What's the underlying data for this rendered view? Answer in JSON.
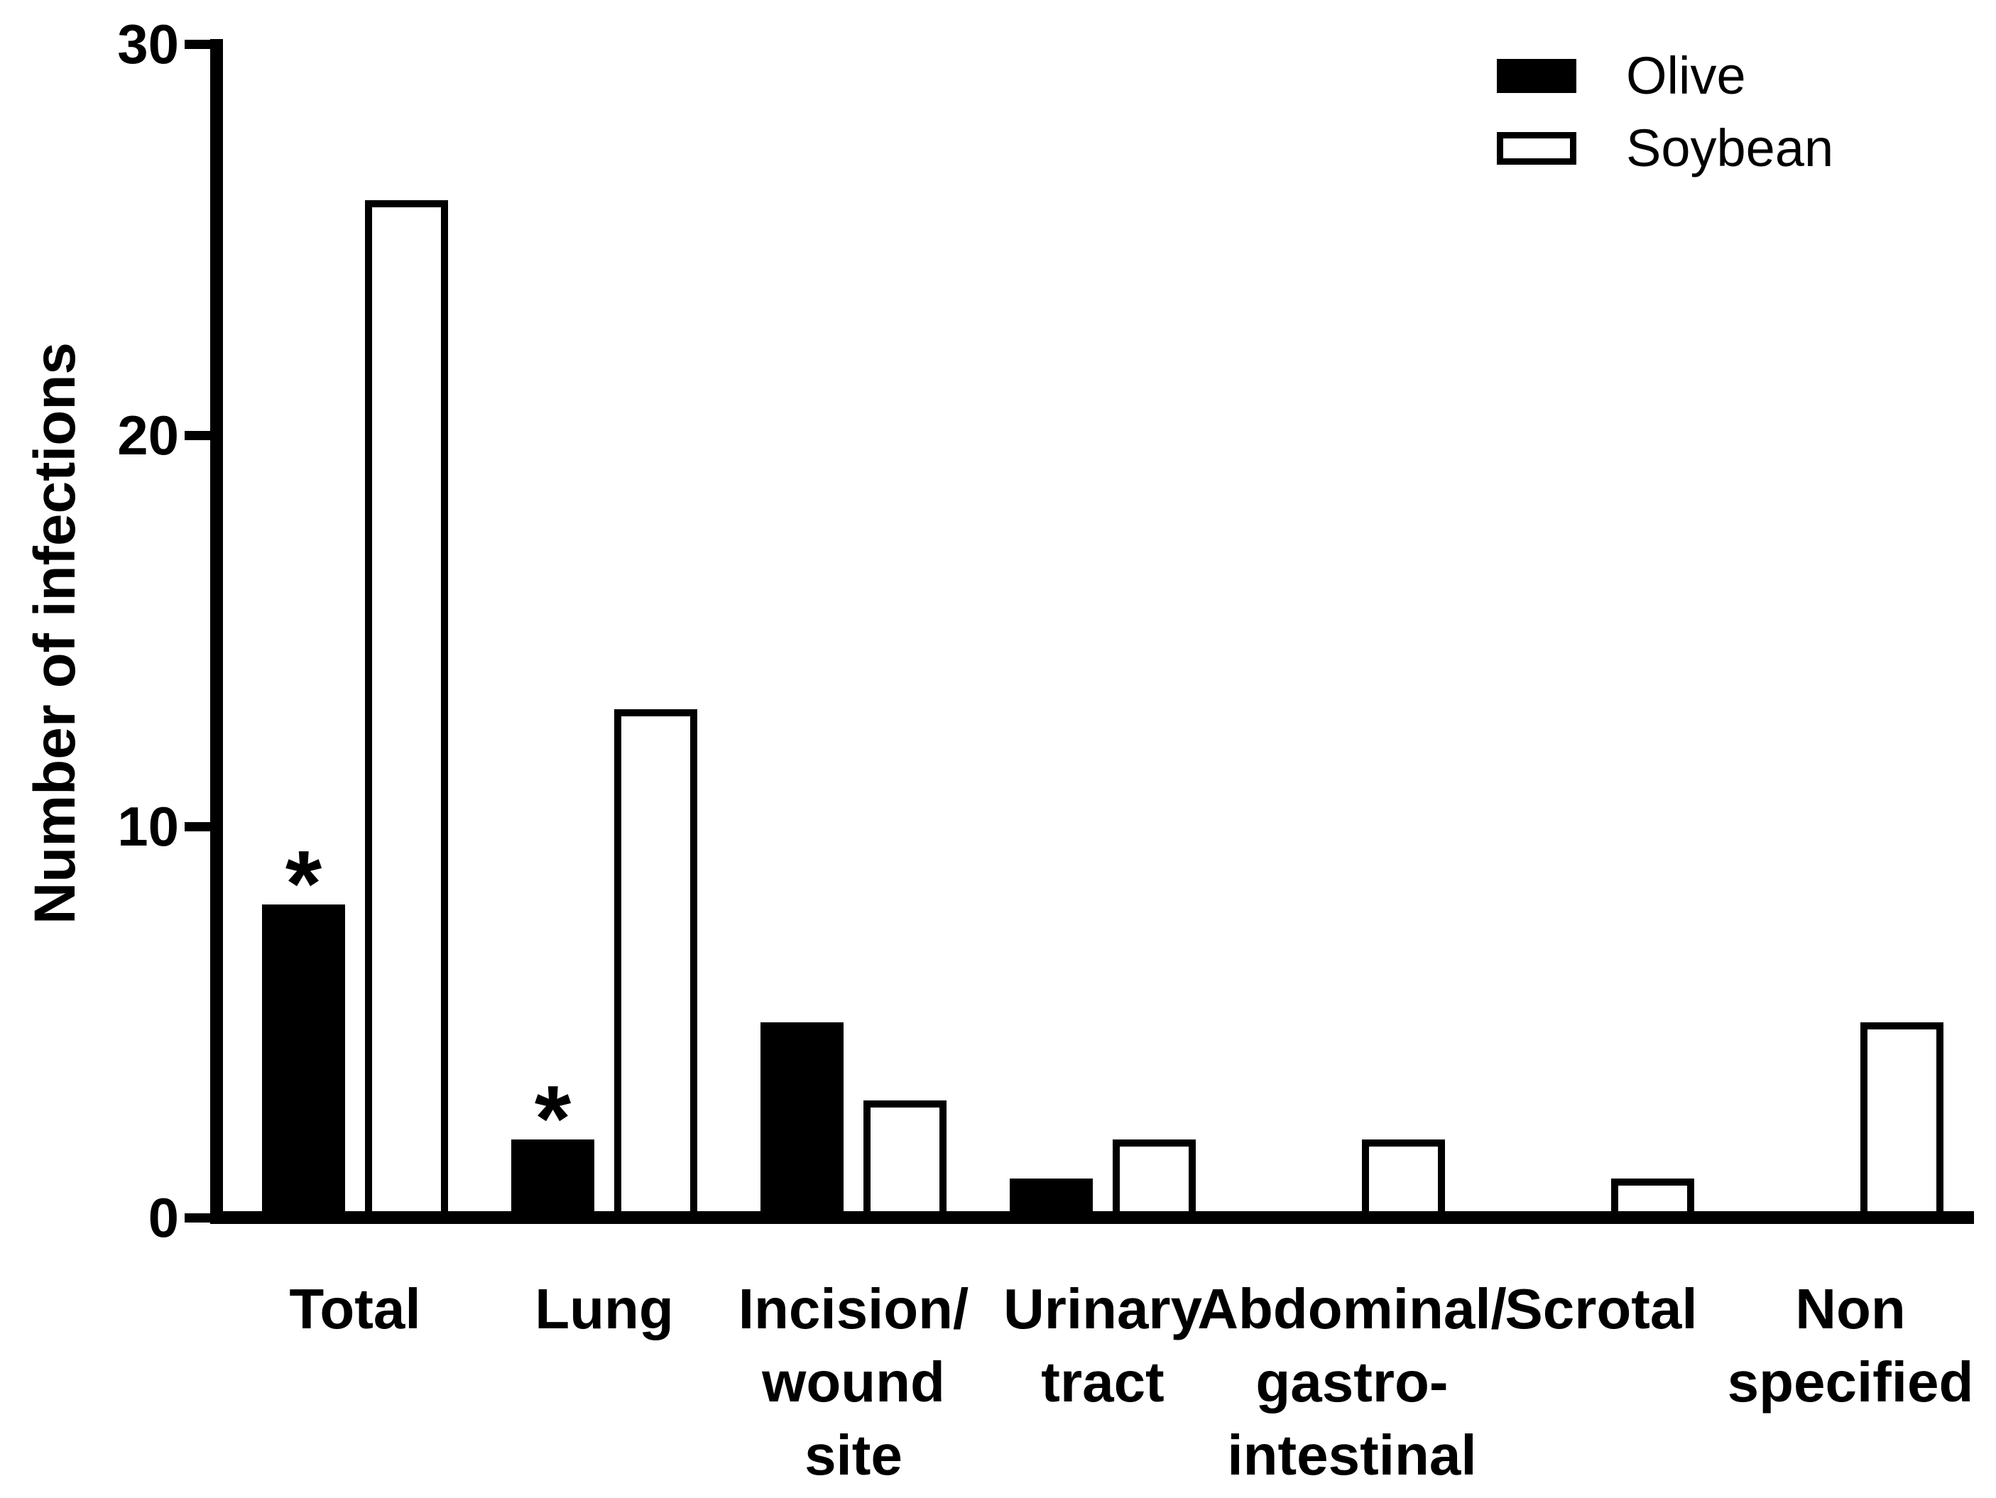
{
  "colors": {
    "foreground": "#000000",
    "background": "#ffffff",
    "olive_fill": "#000000",
    "soybean_fill": "#ffffff",
    "soybean_stroke": "#000000"
  },
  "chart_data": {
    "type": "bar",
    "title": "",
    "xlabel": "",
    "ylabel": "Number of infections",
    "ylim": [
      0,
      30
    ],
    "yticks": [
      0,
      10,
      20,
      30
    ],
    "grid": false,
    "legend_position": "top-right",
    "categories": [
      "Total",
      "Lung",
      "Incision/\nwound\nsite",
      "Urinary\ntract",
      "Abdominal/\ngastro-\nintestinal",
      "Scrotal",
      "Non\nspecified"
    ],
    "series": [
      {
        "name": "Olive",
        "style": "filled",
        "fill": "#000000",
        "values": [
          8,
          2,
          5,
          1,
          0,
          0,
          0
        ]
      },
      {
        "name": "Soybean",
        "style": "open",
        "fill": "#ffffff",
        "stroke": "#000000",
        "values": [
          26,
          13,
          3,
          2,
          2,
          1,
          5
        ]
      }
    ],
    "annotations": [
      {
        "text": "*",
        "category_index": 0,
        "series_index": 0
      },
      {
        "text": "*",
        "category_index": 1,
        "series_index": 0
      }
    ]
  }
}
